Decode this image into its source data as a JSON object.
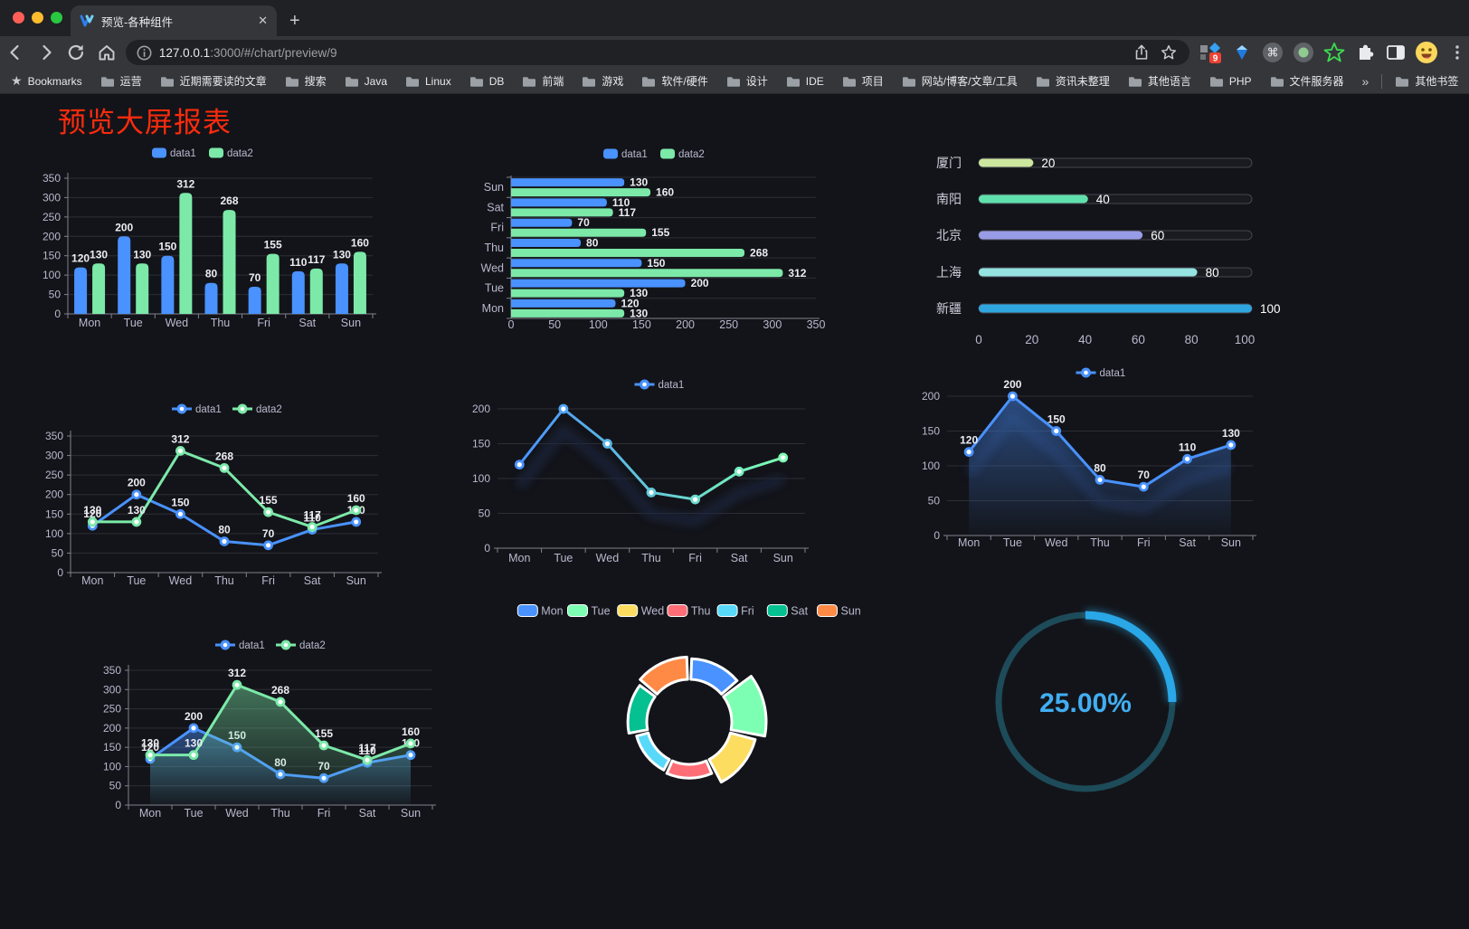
{
  "chrome": {
    "tab_title": "预览-各种组件",
    "close_glyph": "✕",
    "new_tab_glyph": "+",
    "url_host": "127.0.0.1",
    "url_rest": ":3000/#/chart/preview/9",
    "ext_badge": "9",
    "bookmarks_label": "Bookmarks",
    "bookmarks": [
      "运营",
      "近期需要读的文章",
      "搜索",
      "Java",
      "Linux",
      "DB",
      "前端",
      "游戏",
      "软件/硬件",
      "设计",
      "IDE",
      "项目",
      "网站/博客/文章/工具",
      "资讯未整理",
      "其他语言",
      "PHP",
      "文件服务器"
    ],
    "overflow_glyph": "»",
    "other_bookmarks": "其他书签"
  },
  "page": {
    "title": "预览大屏报表"
  },
  "chart_data": [
    {
      "type": "bar",
      "categories": [
        "Mon",
        "Tue",
        "Wed",
        "Thu",
        "Fri",
        "Sat",
        "Sun"
      ],
      "series": [
        {
          "name": "data1",
          "color": "#4992ff",
          "values": [
            120,
            200,
            150,
            80,
            70,
            110,
            130
          ]
        },
        {
          "name": "data2",
          "color": "#7ce9a9",
          "values": [
            130,
            130,
            312,
            268,
            155,
            117,
            160
          ]
        }
      ],
      "ylim": [
        0,
        350
      ],
      "ystep": 50,
      "legend_position": "top",
      "grid": true
    },
    {
      "type": "hbar",
      "categories": [
        "Mon",
        "Tue",
        "Wed",
        "Thu",
        "Fri",
        "Sat",
        "Sun"
      ],
      "series": [
        {
          "name": "data1",
          "color": "#4992ff",
          "values": [
            120,
            200,
            150,
            80,
            70,
            110,
            130
          ]
        },
        {
          "name": "data2",
          "color": "#7ce9a9",
          "values": [
            130,
            130,
            312,
            268,
            155,
            117,
            160
          ]
        }
      ],
      "xlim": [
        0,
        350
      ],
      "xstep": 50,
      "legend_position": "top",
      "grid": true
    },
    {
      "type": "progress",
      "max": 100,
      "ticks": [
        0,
        20,
        40,
        60,
        80,
        100
      ],
      "rows": [
        {
          "label": "厦门",
          "value": 20,
          "color": "#cde79e"
        },
        {
          "label": "南阳",
          "value": 40,
          "color": "#60e0ac"
        },
        {
          "label": "北京",
          "value": 60,
          "color": "#989ce6"
        },
        {
          "label": "上海",
          "value": 80,
          "color": "#94e3e0"
        },
        {
          "label": "新疆",
          "value": 100,
          "color": "#2fa6e0"
        }
      ]
    },
    {
      "type": "line",
      "categories": [
        "Mon",
        "Tue",
        "Wed",
        "Thu",
        "Fri",
        "Sat",
        "Sun"
      ],
      "series": [
        {
          "name": "data1",
          "color": "#4992ff",
          "values": [
            120,
            200,
            150,
            80,
            70,
            110,
            130
          ]
        },
        {
          "name": "data2",
          "color": "#7ce9a9",
          "values": [
            130,
            130,
            312,
            268,
            155,
            117,
            160
          ]
        }
      ],
      "ylim": [
        0,
        350
      ],
      "ystep": 50,
      "labels": true,
      "legend_position": "top",
      "grid": true
    },
    {
      "type": "line",
      "categories": [
        "Mon",
        "Tue",
        "Wed",
        "Thu",
        "Fri",
        "Sat",
        "Sun"
      ],
      "series": [
        {
          "name": "data1",
          "gradient": [
            "#4992ff",
            "#7cffb2"
          ],
          "values": [
            120,
            200,
            150,
            80,
            70,
            110,
            130
          ]
        }
      ],
      "ylim": [
        0,
        200
      ],
      "ystep": 50,
      "labels": false,
      "shadow": true,
      "legend_position": "top",
      "grid": true
    },
    {
      "type": "line",
      "categories": [
        "Mon",
        "Tue",
        "Wed",
        "Thu",
        "Fri",
        "Sat",
        "Sun"
      ],
      "series": [
        {
          "name": "data1",
          "color": "#4992ff",
          "area": true,
          "values": [
            120,
            200,
            150,
            80,
            70,
            110,
            130
          ]
        }
      ],
      "ylim": [
        0,
        200
      ],
      "ystep": 50,
      "labels": true,
      "shadow": true,
      "legend_position": "top",
      "grid": true
    },
    {
      "type": "line",
      "categories": [
        "Mon",
        "Tue",
        "Wed",
        "Thu",
        "Fri",
        "Sat",
        "Sun"
      ],
      "series": [
        {
          "name": "data1",
          "color": "#4992ff",
          "area": true,
          "values": [
            120,
            200,
            150,
            80,
            70,
            110,
            130
          ]
        },
        {
          "name": "data2",
          "color": "#7ce9a9",
          "area": true,
          "values": [
            130,
            130,
            312,
            268,
            155,
            117,
            160
          ]
        }
      ],
      "ylim": [
        0,
        350
      ],
      "ystep": 50,
      "labels": true,
      "legend_position": "top",
      "grid": true
    },
    {
      "type": "rose-pie",
      "categories": [
        "Mon",
        "Tue",
        "Wed",
        "Thu",
        "Fri",
        "Sat",
        "Sun"
      ],
      "values": [
        120,
        200,
        150,
        80,
        70,
        110,
        130
      ],
      "colors": [
        "#4992ff",
        "#7cffb2",
        "#fddd60",
        "#ff6e76",
        "#58d9f9",
        "#05c091",
        "#ff8a45"
      ],
      "legend_position": "top"
    },
    {
      "type": "gauge",
      "value": 25,
      "label": "25.00%",
      "color": "#2aa7e6",
      "track_color": "#1d4b59",
      "text_color": "#41aef2"
    }
  ]
}
